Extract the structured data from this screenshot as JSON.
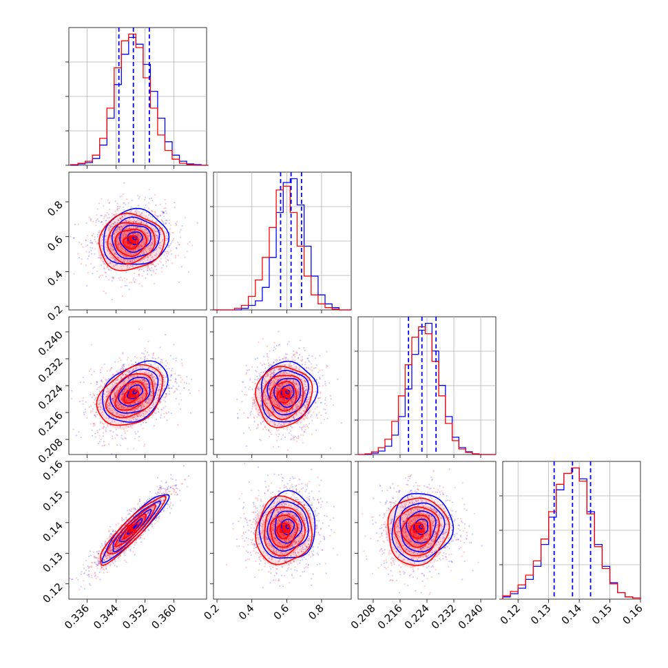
{
  "chart_data": {
    "type": "corner",
    "series": [
      {
        "name": "",
        "color": "#0000ff"
      },
      {
        "name": "",
        "color": "#ff0000"
      }
    ],
    "grid": true,
    "params": [
      {
        "range": [
          0.331,
          0.369
        ],
        "ticks": [
          "0.336",
          "0.344",
          "0.352",
          "0.360"
        ],
        "quantiles": [
          0.3448,
          0.3488,
          0.3532
        ],
        "hist": {
          "bins": [
            0.3315,
            0.3335,
            0.3355,
            0.3375,
            0.3395,
            0.3415,
            0.3435,
            0.3455,
            0.3475,
            0.3495,
            0.3515,
            0.3535,
            0.3555,
            0.3575,
            0.3595,
            0.3615,
            0.3635,
            0.3655,
            0.3675,
            0.3695
          ],
          "blue": [
            0,
            2,
            4,
            10,
            30,
            70,
            120,
            165,
            190,
            180,
            150,
            110,
            70,
            35,
            15,
            6,
            2,
            1,
            0
          ],
          "red": [
            1,
            3,
            6,
            15,
            40,
            85,
            145,
            185,
            195,
            175,
            130,
            85,
            45,
            22,
            9,
            3,
            1,
            0,
            0
          ]
        }
      },
      {
        "range": [
          0.18,
          0.97
        ],
        "ticks": [
          "0.2",
          "0.4",
          "0.6",
          "0.8"
        ],
        "quantiles": [
          0.565,
          0.625,
          0.685
        ],
        "hist": {
          "bins": [
            0.18,
            0.22,
            0.26,
            0.3,
            0.34,
            0.38,
            0.42,
            0.46,
            0.5,
            0.54,
            0.58,
            0.62,
            0.66,
            0.7,
            0.74,
            0.78,
            0.82,
            0.86,
            0.9,
            0.94,
            0.97
          ],
          "blue": [
            0,
            0,
            0,
            0,
            2,
            6,
            12,
            30,
            70,
            130,
            170,
            175,
            140,
            85,
            45,
            20,
            8,
            3,
            0,
            0
          ],
          "red": [
            0,
            0,
            0,
            2,
            6,
            18,
            40,
            70,
            110,
            160,
            165,
            130,
            85,
            45,
            20,
            8,
            3,
            1,
            0,
            0
          ]
        }
      },
      {
        "range": [
          0.2035,
          0.2445
        ],
        "ticks": [
          "0.208",
          "0.216",
          "0.224",
          "0.232",
          "0.240"
        ],
        "quantiles": [
          0.2185,
          0.2225,
          0.2267
        ],
        "hist": {
          "bins": [
            0.2035,
            0.2055,
            0.2075,
            0.2095,
            0.2115,
            0.2135,
            0.2155,
            0.2175,
            0.2195,
            0.2215,
            0.2235,
            0.2255,
            0.2275,
            0.2295,
            0.2315,
            0.2335,
            0.2355,
            0.2375,
            0.2395,
            0.2415,
            0.2445
          ],
          "blue": [
            0,
            0,
            2,
            5,
            12,
            28,
            55,
            95,
            145,
            180,
            190,
            150,
            100,
            55,
            25,
            10,
            4,
            1,
            0,
            0
          ],
          "red": [
            0,
            1,
            4,
            10,
            22,
            48,
            85,
            130,
            170,
            185,
            175,
            135,
            85,
            45,
            20,
            8,
            3,
            1,
            0,
            0
          ]
        }
      },
      {
        "range": [
          0.115,
          0.16
        ],
        "ticks": [
          "0.12",
          "0.13",
          "0.14",
          "0.15",
          "0.16"
        ],
        "quantiles": [
          0.1318,
          0.1378,
          0.1437
        ],
        "hist": {
          "bins": [
            0.115,
            0.1175,
            0.12,
            0.1225,
            0.125,
            0.1275,
            0.13,
            0.1325,
            0.135,
            0.1375,
            0.14,
            0.1425,
            0.145,
            0.1475,
            0.15,
            0.1525,
            0.155,
            0.1575,
            0.16
          ],
          "blue": [
            2,
            5,
            10,
            18,
            30,
            50,
            75,
            100,
            115,
            120,
            110,
            80,
            50,
            30,
            15,
            6,
            2,
            1
          ],
          "red": [
            3,
            7,
            13,
            22,
            35,
            55,
            80,
            105,
            115,
            120,
            108,
            78,
            48,
            28,
            14,
            6,
            2,
            1
          ]
        }
      }
    ],
    "pairs": [
      {
        "row": 1,
        "col": 0,
        "center": [
          0.3485,
          0.58
        ],
        "sd": [
          0.0045,
          0.08
        ],
        "rho": 0.05
      },
      {
        "row": 2,
        "col": 0,
        "center": [
          0.3485,
          0.2215
        ],
        "sd": [
          0.0045,
          0.0045
        ],
        "rho": 0.35
      },
      {
        "row": 2,
        "col": 1,
        "center": [
          0.59,
          0.2215
        ],
        "sd": [
          0.08,
          0.0045
        ],
        "rho": 0.05
      },
      {
        "row": 3,
        "col": 0,
        "center": [
          0.3485,
          0.138
        ],
        "sd": [
          0.0045,
          0.0055
        ],
        "rho": 0.92
      },
      {
        "row": 3,
        "col": 1,
        "center": [
          0.59,
          0.138
        ],
        "sd": [
          0.08,
          0.0055
        ],
        "rho": 0.05
      },
      {
        "row": 3,
        "col": 2,
        "center": [
          0.2215,
          0.138
        ],
        "sd": [
          0.0045,
          0.0055
        ],
        "rho": 0.05
      }
    ]
  }
}
